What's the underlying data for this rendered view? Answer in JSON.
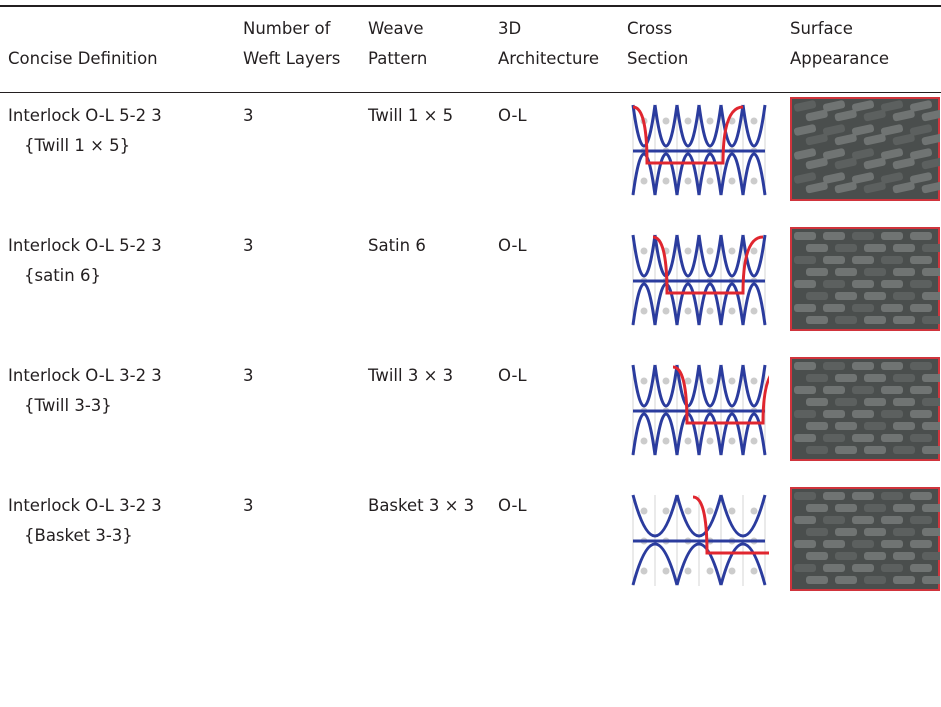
{
  "table": {
    "header": [
      [
        "Concise Definition"
      ],
      [
        "Number of",
        "Weft Layers"
      ],
      [
        "Weave",
        "Pattern"
      ],
      [
        "3D",
        "Architecture"
      ],
      [
        "Cross",
        "Section"
      ],
      [
        "Surface",
        "Appearance"
      ]
    ],
    "rows": [
      {
        "definition": [
          "Interlock O-L 5-2 3",
          "{Twill 1 × 5}"
        ],
        "layers": 3,
        "weave": "Twill 1 × 5",
        "architecture": "O-L"
      },
      {
        "definition": [
          "Interlock O-L 5-2 3",
          "{satin 6}"
        ],
        "layers": 3,
        "weave": "Satin 6",
        "architecture": "O-L"
      },
      {
        "definition": [
          "Interlock O-L 3-2 3",
          "{Twill 3-3}"
        ],
        "layers": 3,
        "weave": "Twill 3 × 3",
        "architecture": "O-L"
      },
      {
        "definition": [
          "Interlock O-L 3-2 3",
          "{Basket 3-3}"
        ],
        "layers": 3,
        "weave": "Basket 3 × 3",
        "architecture": "O-L"
      }
    ]
  }
}
